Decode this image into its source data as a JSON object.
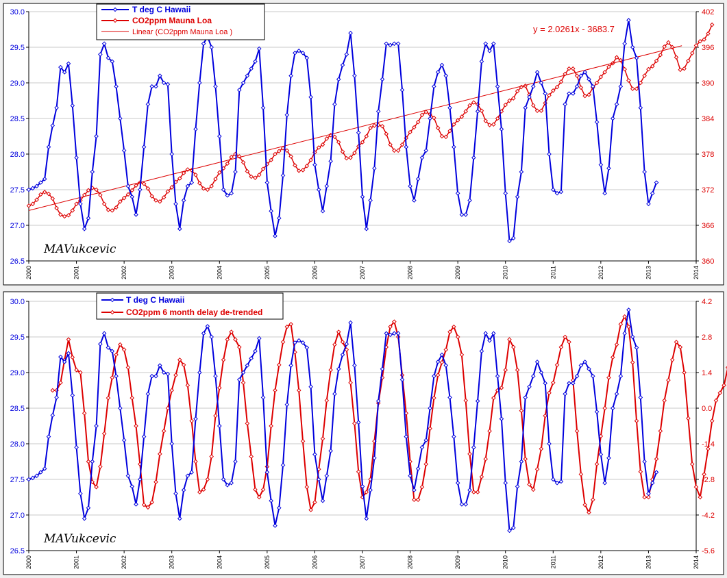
{
  "colors": {
    "blue": "#0000dd",
    "red": "#dd0000",
    "background": "#ffffff",
    "grid": "#c8c8c8"
  },
  "chart_data": [
    {
      "type": "line",
      "x_axis": {
        "ticks": [
          "2000",
          "2001",
          "2002",
          "2003",
          "2004",
          "2005",
          "2006",
          "2007",
          "2008",
          "2009",
          "2010",
          "2011",
          "2012",
          "2013",
          "2014"
        ],
        "range": [
          2000,
          2014
        ]
      },
      "y_left": {
        "ticks": [
          "26.5",
          "27.0",
          "27.5",
          "28.0",
          "28.5",
          "29.0",
          "29.5",
          "30.0"
        ],
        "range": [
          26.5,
          30.0
        ]
      },
      "y_right": {
        "ticks": [
          "360",
          "366",
          "372",
          "378",
          "384",
          "390",
          "396",
          "402"
        ],
        "range": [
          360,
          402
        ]
      },
      "legend": [
        "T deg C Hawaii",
        "CO2ppm Mauna Loa",
        "Linear (CO2ppm Mauna Loa  )"
      ],
      "trend_equation": "y = 2.0261x - 3683.7",
      "signature": "MAVukcevic",
      "temperature_monthly": {
        "start": "2000-01",
        "values": [
          27.5,
          27.52,
          27.55,
          27.6,
          27.65,
          28.1,
          28.4,
          28.65,
          29.22,
          29.15,
          29.27,
          28.68,
          27.95,
          27.3,
          26.95,
          27.1,
          27.75,
          28.25,
          29.4,
          29.55,
          29.35,
          29.3,
          28.95,
          28.5,
          28.05,
          27.55,
          27.4,
          27.15,
          27.5,
          28.1,
          28.7,
          28.95,
          28.95,
          29.1,
          29.0,
          28.98,
          28.0,
          27.3,
          26.95,
          27.35,
          27.55,
          27.6,
          28.35,
          29.0,
          29.55,
          29.65,
          29.5,
          28.95,
          28.25,
          27.5,
          27.42,
          27.45,
          27.75,
          28.9,
          29.0,
          29.1,
          29.2,
          29.3,
          29.48,
          28.65,
          27.6,
          27.2,
          26.85,
          27.1,
          27.7,
          28.55,
          29.1,
          29.42,
          29.45,
          29.42,
          29.35,
          28.8,
          27.85,
          27.5,
          27.2,
          27.55,
          27.9,
          28.7,
          29.05,
          29.25,
          29.4,
          29.7,
          29.1,
          28.3,
          27.4,
          26.95,
          27.35,
          27.8,
          28.6,
          29.05,
          29.55,
          29.53,
          29.55,
          29.55,
          28.9,
          28.1,
          27.55,
          27.35,
          27.65,
          27.95,
          28.05,
          28.5,
          28.95,
          29.15,
          29.25,
          29.1,
          28.65,
          28.1,
          27.45,
          27.15,
          27.15,
          27.35,
          27.95,
          28.6,
          29.3,
          29.55,
          29.45,
          29.55,
          28.95,
          28.35,
          27.45,
          26.78,
          26.82,
          27.4,
          27.75,
          28.65,
          28.8,
          28.95,
          29.15,
          29.0,
          28.85,
          28.0,
          27.5,
          27.45,
          27.47,
          28.7,
          28.85,
          28.85,
          28.95,
          29.1,
          29.15,
          29.05,
          28.95,
          28.45,
          27.85,
          27.45,
          27.8,
          28.5,
          28.7,
          28.95,
          29.55,
          29.88,
          29.5,
          29.35,
          28.65,
          27.75,
          27.3,
          27.45,
          27.6
        ],
        "unit": "deg C"
      },
      "co2_monthly": {
        "start": "2000-01",
        "values": [
          369.3,
          369.6,
          370.3,
          371.2,
          371.6,
          371.3,
          370.5,
          368.9,
          367.8,
          367.5,
          367.7,
          368.5,
          369.6,
          370.2,
          371.1,
          371.9,
          372.3,
          372.0,
          371.1,
          369.6,
          368.6,
          368.5,
          369.0,
          370.0,
          370.6,
          371.2,
          371.9,
          372.7,
          373.2,
          373.0,
          372.2,
          370.9,
          370.2,
          370.0,
          370.7,
          371.7,
          372.4,
          373.3,
          373.9,
          374.8,
          375.4,
          375.3,
          374.5,
          373.1,
          372.2,
          372.0,
          372.6,
          373.8,
          374.9,
          375.6,
          376.4,
          377.5,
          378.0,
          377.6,
          376.6,
          375.1,
          374.2,
          374.0,
          374.5,
          375.5,
          376.3,
          377.0,
          378.0,
          378.5,
          379.0,
          378.6,
          377.6,
          376.1,
          375.2,
          375.3,
          376.0,
          377.0,
          378.3,
          379.1,
          379.6,
          380.6,
          381.2,
          380.9,
          380.0,
          378.4,
          377.3,
          377.4,
          378.2,
          379.3,
          380.0,
          381.0,
          382.4,
          382.8,
          382.9,
          382.7,
          381.4,
          379.6,
          378.6,
          378.6,
          379.6,
          380.7,
          381.7,
          382.5,
          383.4,
          384.6,
          385.1,
          384.7,
          384.1,
          382.4,
          381.0,
          380.9,
          381.9,
          383.0,
          383.7,
          384.3,
          385.2,
          386.2,
          386.7,
          386.4,
          385.3,
          383.6,
          382.9,
          383.0,
          384.0,
          385.2,
          386.3,
          387.0,
          387.4,
          388.6,
          389.3,
          389.5,
          388.0,
          386.2,
          385.3,
          385.3,
          386.6,
          387.9,
          388.7,
          389.3,
          390.2,
          391.5,
          392.4,
          392.4,
          391.2,
          389.2,
          387.8,
          388.0,
          389.2,
          390.0,
          391.0,
          391.8,
          392.7,
          393.3,
          394.3,
          393.8,
          392.3,
          390.4,
          389.0,
          389.0,
          390.0,
          391.2,
          392.3,
          392.8,
          393.7,
          394.7,
          396.1,
          396.8,
          396.0,
          394.3,
          392.2,
          392.4,
          393.7,
          395.0,
          396.3,
          397.0,
          397.3,
          398.3,
          399.8
        ],
        "unit": "ppm"
      }
    },
    {
      "type": "line",
      "x_axis": {
        "ticks": [
          "2000",
          "2001",
          "2002",
          "2003",
          "2004",
          "2005",
          "2006",
          "2007",
          "2008",
          "2009",
          "2010",
          "2011",
          "2012",
          "2013",
          "2014"
        ],
        "range": [
          2000,
          2014
        ]
      },
      "y_left": {
        "ticks": [
          "26.5",
          "27.0",
          "27.5",
          "28.0",
          "28.5",
          "29.0",
          "29.5",
          "30.0"
        ],
        "range": [
          26.5,
          30.0
        ]
      },
      "y_right": {
        "ticks": [
          "-5.6",
          "-4.2",
          "-2.8",
          "-1.4",
          "0.0",
          "1.4",
          "2.8",
          "4.2"
        ],
        "range": [
          -5.6,
          4.2
        ]
      },
      "legend": [
        "T deg C  Hawaii",
        "CO2ppm 6 month delay  de-trended"
      ],
      "signature": "MAVukcevic",
      "co2_detrended_delayed": {
        "start": "2000-07",
        "values": [
          0.7,
          0.7,
          1.0,
          1.9,
          2.7,
          2.0,
          1.5,
          1.4,
          -0.2,
          -2.1,
          -2.9,
          -3.1,
          -2.3,
          -1.0,
          0.4,
          1.2,
          2.1,
          2.5,
          2.3,
          1.6,
          0.4,
          -0.7,
          -2.2,
          -3.8,
          -3.9,
          -3.7,
          -2.9,
          -1.8,
          -0.9,
          0.0,
          0.7,
          1.3,
          1.9,
          1.7,
          0.9,
          -0.5,
          -2.1,
          -3.3,
          -3.2,
          -2.8,
          -1.9,
          -0.3,
          0.8,
          1.9,
          2.7,
          3.0,
          2.7,
          2.4,
          1.0,
          -0.6,
          -1.9,
          -3.2,
          -3.5,
          -3.2,
          -2.3,
          -0.7,
          0.7,
          1.7,
          2.6,
          3.2,
          3.3,
          2.2,
          0.7,
          -1.3,
          -3.1,
          -4.0,
          -3.7,
          -2.4,
          -1.2,
          0.3,
          1.5,
          2.5,
          3.0,
          2.6,
          2.3,
          1.0,
          -0.6,
          -2.5,
          -3.5,
          -3.3,
          -2.8,
          -1.3,
          0.2,
          1.2,
          2.4,
          3.2,
          3.4,
          2.8,
          1.3,
          -0.2,
          -2.1,
          -3.6,
          -3.6,
          -3.1,
          -2.2,
          -0.8,
          0.4,
          1.3,
          1.8,
          2.3,
          3.0,
          3.2,
          2.8,
          2.1,
          0.3,
          -1.8,
          -3.3,
          -3.3,
          -2.7,
          -2.0,
          -0.9,
          0.4,
          0.7,
          0.8,
          1.5,
          2.7,
          2.4,
          1.5,
          -0.1,
          -2.0,
          -3.0,
          -3.2,
          -2.4,
          -1.6,
          -0.3,
          0.6,
          1.0,
          1.7,
          2.4,
          2.8,
          2.6,
          1.1,
          -0.9,
          -2.6,
          -3.8,
          -4.1,
          -3.6,
          -2.2,
          -1.1,
          0.0,
          1.2,
          2.0,
          2.5,
          3.3,
          3.6,
          3.2,
          1.8,
          -0.5,
          -2.5,
          -3.5,
          -3.5,
          -2.8,
          -2.0,
          -0.9,
          0.3,
          1.1,
          1.9,
          2.6,
          2.4,
          1.4,
          -0.4,
          -2.2,
          -3.1,
          -3.5,
          -2.6,
          -1.6,
          -0.5,
          0.3,
          0.6,
          0.9,
          1.6,
          2.4,
          3.0,
          2.8,
          1.8,
          0.2,
          -1.7,
          -3.1,
          -3.3,
          -2.5,
          -1.5,
          -0.2,
          1.0,
          1.5,
          2.0,
          2.2,
          3.2
        ]
      },
      "temperature_monthly_ref": "same as chart 1 temperature series"
    }
  ]
}
